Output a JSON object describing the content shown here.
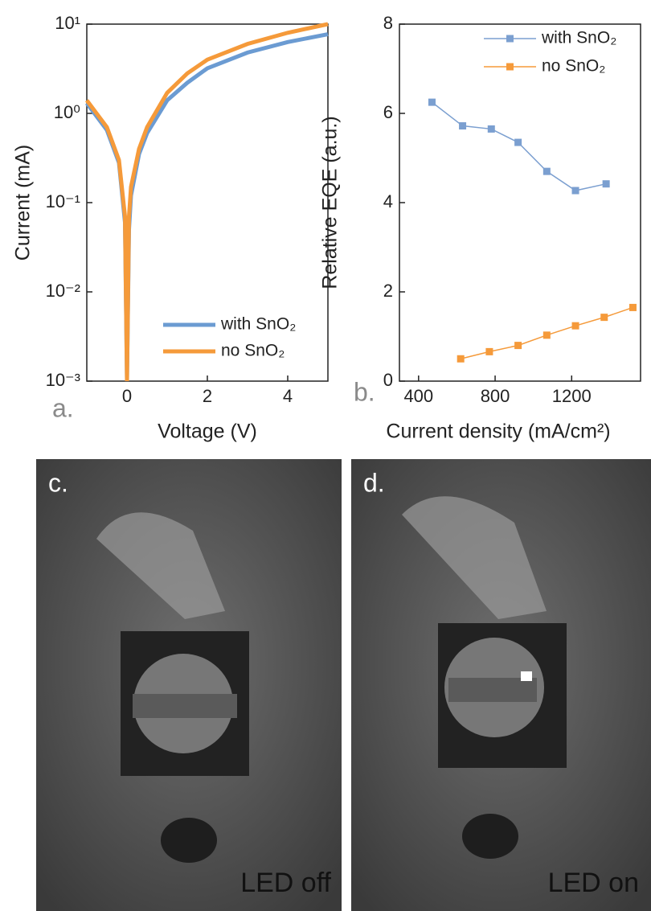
{
  "chart_data": [
    {
      "type": "line",
      "panel_label": "a.",
      "x_label": "Voltage (V)",
      "y_label": "Current (mA)",
      "xlim": [
        -1,
        5
      ],
      "xticks": [
        0,
        2,
        4
      ],
      "ylim": [
        0.001,
        10
      ],
      "yscale": "log",
      "yticks": [
        {
          "value": 0.001,
          "label": "10⁻³"
        },
        {
          "value": 0.01,
          "label": "10⁻²"
        },
        {
          "value": 0.1,
          "label": "10⁻¹"
        },
        {
          "value": 1,
          "label": "10⁰"
        },
        {
          "value": 10,
          "label": "10¹"
        }
      ],
      "legend": "lower right",
      "x": [
        -1,
        -0.5,
        -0.2,
        -0.05,
        0,
        0.05,
        0.1,
        0.3,
        0.5,
        1,
        1.5,
        2,
        3,
        4,
        5
      ],
      "series": [
        {
          "name": "with SnO₂",
          "color": "#6b9bd2",
          "values": [
            1.3,
            0.65,
            0.28,
            0.06,
            0.001,
            0.05,
            0.12,
            0.35,
            0.6,
            1.4,
            2.2,
            3.2,
            4.8,
            6.3,
            7.7
          ]
        },
        {
          "name": "no SnO₂",
          "color": "#f59a3a",
          "values": [
            1.4,
            0.7,
            0.3,
            0.07,
            0.001,
            0.07,
            0.15,
            0.4,
            0.7,
            1.7,
            2.8,
            4,
            6,
            8,
            10
          ]
        }
      ]
    },
    {
      "type": "scatter-line",
      "panel_label": "b.",
      "x_label": "Current density (mA/cm²)",
      "y_label": "Relative EQE (a.u.)",
      "xlim": [
        300,
        1560
      ],
      "xticks": [
        400,
        800,
        1200
      ],
      "ylim": [
        0,
        8
      ],
      "yticks": [
        0,
        2,
        4,
        6,
        8
      ],
      "legend": "upper right",
      "series": [
        {
          "name": "with SnO₂",
          "color": "#7b9fd0",
          "x": [
            470,
            630,
            780,
            920,
            1070,
            1220,
            1380
          ],
          "values": [
            6.25,
            5.72,
            5.65,
            5.35,
            4.7,
            4.27,
            4.42
          ]
        },
        {
          "name": "no SnO₂",
          "color": "#f59a3a",
          "x": [
            620,
            770,
            920,
            1070,
            1220,
            1370,
            1520
          ],
          "values": [
            0.5,
            0.66,
            0.8,
            1.03,
            1.24,
            1.43,
            1.65
          ]
        }
      ]
    }
  ],
  "photos": [
    {
      "label": "c.",
      "caption": "LED off"
    },
    {
      "label": "d.",
      "caption": "LED on"
    }
  ]
}
